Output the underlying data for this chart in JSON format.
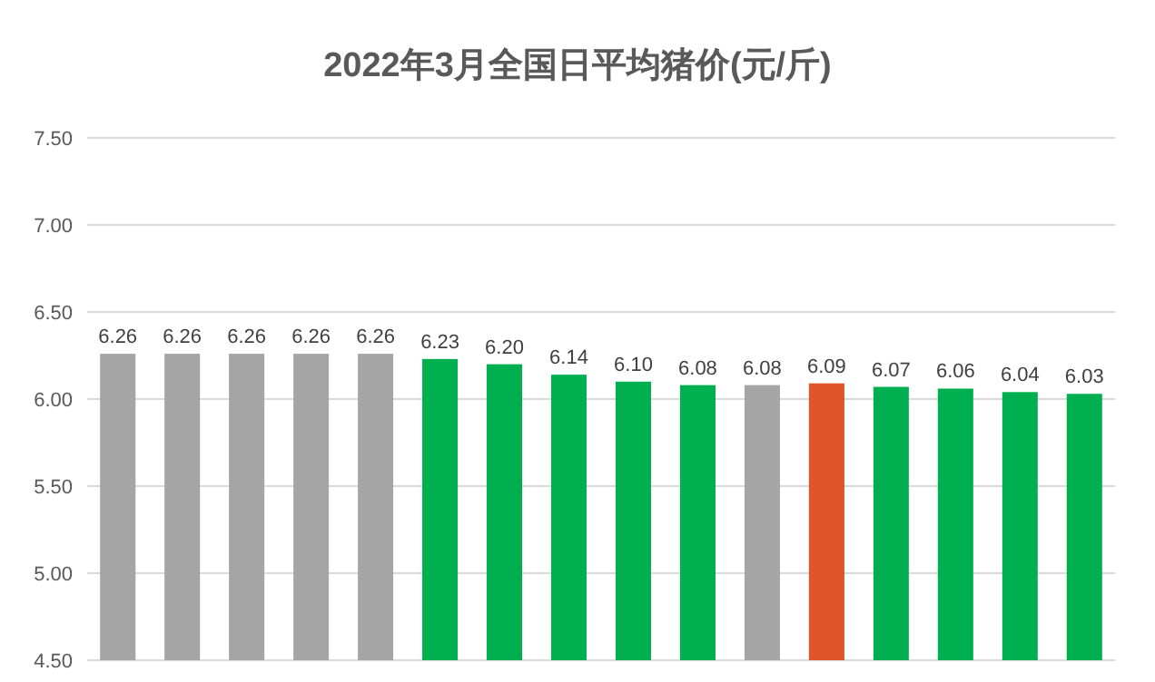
{
  "chart_data": {
    "type": "bar",
    "title": "2022年3月全国日平均猪价(元/斤)",
    "categories": [
      null,
      null,
      null,
      null,
      null,
      null,
      null,
      null,
      null,
      null,
      null,
      null,
      null,
      null,
      null,
      null
    ],
    "values": [
      6.26,
      6.26,
      6.26,
      6.26,
      6.26,
      6.23,
      6.2,
      6.14,
      6.1,
      6.08,
      6.08,
      6.09,
      6.07,
      6.06,
      6.04,
      6.03
    ],
    "value_labels": [
      "6.26",
      "6.26",
      "6.26",
      "6.26",
      "6.26",
      "6.23",
      "6.20",
      "6.14",
      "6.10",
      "6.08",
      "6.08",
      "6.09",
      "6.07",
      "6.06",
      "6.04",
      "6.03"
    ],
    "colors": [
      "#a5a5a5",
      "#a5a5a5",
      "#a5a5a5",
      "#a5a5a5",
      "#a5a5a5",
      "#00b050",
      "#00b050",
      "#00b050",
      "#00b050",
      "#00b050",
      "#a5a5a5",
      "#e0542a",
      "#00b050",
      "#00b050",
      "#00b050",
      "#00b050"
    ],
    "ylim": [
      4.5,
      7.5
    ],
    "yticks": [
      {
        "value": 4.5,
        "label": "4.50"
      },
      {
        "value": 5,
        "label": "5.00"
      },
      {
        "value": 5.5,
        "label": "5.50"
      },
      {
        "value": 6,
        "label": "6.00"
      },
      {
        "value": 6.5,
        "label": "6.50"
      },
      {
        "value": 7,
        "label": "7.00"
      },
      {
        "value": 7.5,
        "label": "7.50"
      }
    ],
    "grid": "y"
  }
}
